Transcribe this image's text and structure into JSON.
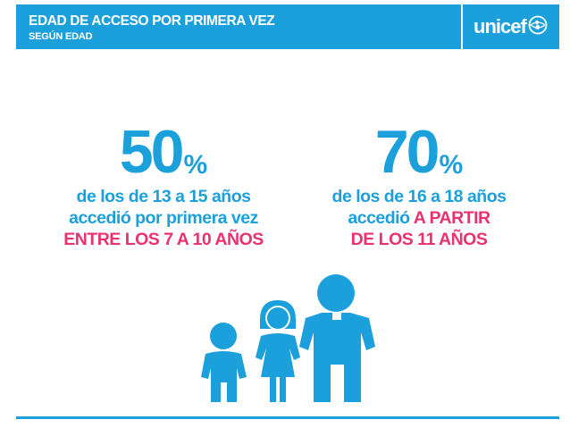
{
  "header": {
    "title": "EDAD DE ACCESO POR PRIMERA VEZ",
    "subtitle": "SEGÚN EDAD",
    "logo_text": "unicef",
    "logo_emblem": "unicef-emblem-icon"
  },
  "stats": [
    {
      "value": "50",
      "percent_sign": "%",
      "line1": "de los de 13 a 15 años",
      "line2": "accedió por primera vez",
      "line3": "ENTRE LOS 7 A 10 AÑOS"
    },
    {
      "value": "70",
      "percent_sign": "%",
      "line1": "de los de 16 a 18  años",
      "line2_plain": "accedió ",
      "line2_highlight": "A PARTIR",
      "line3": "DE LOS 11 AÑOS"
    }
  ],
  "figures": [
    "small-child-icon",
    "girl-icon",
    "older-child-icon"
  ],
  "colors": {
    "brand_blue": "#1ca0dc",
    "highlight_pink": "#e8336e",
    "background": "#ffffff"
  }
}
